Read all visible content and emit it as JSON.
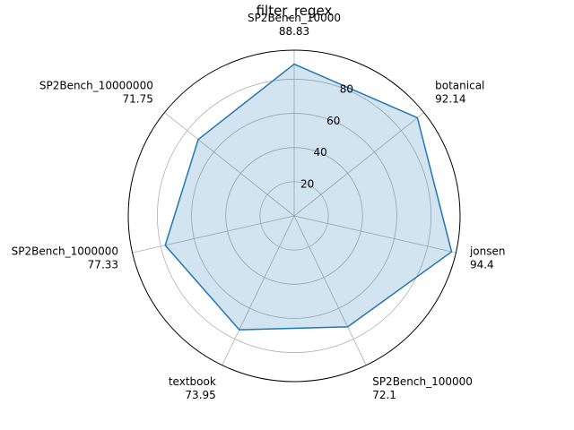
{
  "chart_data": {
    "type": "radar",
    "title": "filter_regex",
    "categories": [
      "SP2Bench_10000",
      "botanical",
      "jonsen",
      "SP2Bench_100000",
      "textbook",
      "SP2Bench_1000000",
      "SP2Bench_10000000"
    ],
    "values": [
      88.83,
      92.14,
      94.4,
      72.1,
      73.95,
      77.33,
      71.75
    ],
    "value_labels": [
      "88.83",
      "92.14",
      "94.4",
      "72.1",
      "73.95",
      "77.33",
      "71.75"
    ],
    "r_ticks": [
      20,
      40,
      60,
      80
    ],
    "r_tick_labels": [
      "20",
      "40",
      "60",
      "80"
    ],
    "rlim": [
      0,
      97
    ],
    "grid": true,
    "colors": {
      "line": "#1f77b4",
      "fill": "#1f77b4",
      "grid": "#b0b0b0",
      "spine": "#000000"
    }
  }
}
